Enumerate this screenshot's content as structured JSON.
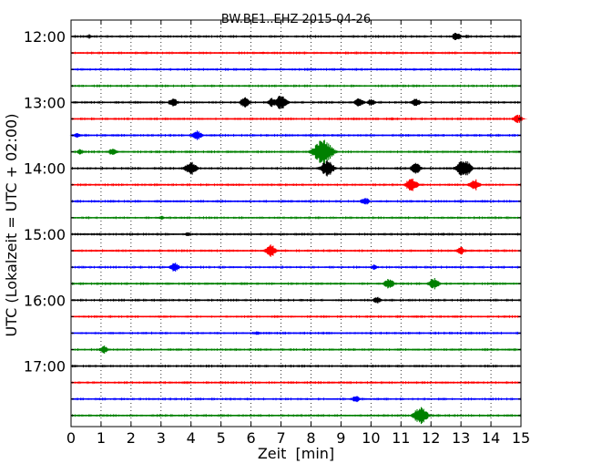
{
  "chart_data": {
    "type": "line",
    "title": "BW.BE1..EHZ 2015-04-26",
    "xlabel": "Zeit  [min]",
    "ylabel": "UTC (Lokalzeit = UTC + 02:00)",
    "xlim": [
      0,
      15
    ],
    "x_ticks": [
      0,
      1,
      2,
      3,
      4,
      5,
      6,
      7,
      8,
      9,
      10,
      11,
      12,
      13,
      14,
      15
    ],
    "x_tick_labels": [
      "0",
      "1",
      "2",
      "3",
      "4",
      "5",
      "6",
      "7",
      "8",
      "9",
      "10",
      "11",
      "12",
      "13",
      "14",
      "15"
    ],
    "y_tick_labels": [
      "12:00",
      "13:00",
      "14:00",
      "15:00",
      "16:00",
      "17:00"
    ],
    "grid": "vertical-dotted",
    "trace_interval_minutes": 15,
    "color_cycle": [
      "#000000",
      "#ff0000",
      "#0000ff",
      "#008000"
    ],
    "traces": [
      {
        "start": "12:00",
        "events": [
          {
            "t": 0.6,
            "amp": 0.25
          },
          {
            "t": 12.85,
            "amp": 0.5
          },
          {
            "t": 13.2,
            "amp": 0.2
          }
        ]
      },
      {
        "start": "12:15",
        "events": [
          {
            "t": 6.4,
            "amp": 0.15
          }
        ]
      },
      {
        "start": "12:30",
        "events": []
      },
      {
        "start": "12:45",
        "events": [
          {
            "t": 11.0,
            "amp": 0.12
          }
        ]
      },
      {
        "start": "13:00",
        "events": [
          {
            "t": 3.4,
            "amp": 0.5
          },
          {
            "t": 5.8,
            "amp": 0.6
          },
          {
            "t": 6.7,
            "amp": 0.5
          },
          {
            "t": 7.0,
            "amp": 0.8
          },
          {
            "t": 9.6,
            "amp": 0.5
          },
          {
            "t": 10.0,
            "amp": 0.4
          },
          {
            "t": 11.5,
            "amp": 0.5
          }
        ]
      },
      {
        "start": "13:15",
        "events": [
          {
            "t": 10.7,
            "amp": 0.2
          },
          {
            "t": 14.9,
            "amp": 0.5
          }
        ]
      },
      {
        "start": "13:30",
        "events": [
          {
            "t": 0.2,
            "amp": 0.3
          },
          {
            "t": 4.2,
            "amp": 0.55
          }
        ]
      },
      {
        "start": "13:45",
        "events": [
          {
            "t": 0.3,
            "amp": 0.3
          },
          {
            "t": 1.4,
            "amp": 0.45
          },
          {
            "t": 8.4,
            "amp": 1.4
          }
        ]
      },
      {
        "start": "14:00",
        "events": [
          {
            "t": 4.0,
            "amp": 0.75
          },
          {
            "t": 8.55,
            "amp": 0.9
          },
          {
            "t": 11.5,
            "amp": 0.6
          },
          {
            "t": 13.1,
            "amp": 1.0
          }
        ]
      },
      {
        "start": "14:15",
        "events": [
          {
            "t": 11.35,
            "amp": 0.75
          },
          {
            "t": 13.45,
            "amp": 0.65
          }
        ]
      },
      {
        "start": "14:30",
        "events": [
          {
            "t": 1.3,
            "amp": 0.15
          },
          {
            "t": 9.8,
            "amp": 0.45
          }
        ]
      },
      {
        "start": "14:45",
        "events": [
          {
            "t": 3.0,
            "amp": 0.25
          }
        ]
      },
      {
        "start": "15:00",
        "events": [
          {
            "t": 3.9,
            "amp": 0.25
          },
          {
            "t": 12.4,
            "amp": 0.2
          }
        ]
      },
      {
        "start": "15:15",
        "events": [
          {
            "t": 6.65,
            "amp": 0.7
          },
          {
            "t": 13.0,
            "amp": 0.45
          }
        ]
      },
      {
        "start": "15:30",
        "events": [
          {
            "t": 3.45,
            "amp": 0.55
          },
          {
            "t": 10.1,
            "amp": 0.3
          }
        ]
      },
      {
        "start": "15:45",
        "events": [
          {
            "t": 10.6,
            "amp": 0.6
          },
          {
            "t": 12.1,
            "amp": 0.65
          }
        ]
      },
      {
        "start": "16:00",
        "events": [
          {
            "t": 7.7,
            "amp": 0.15
          },
          {
            "t": 10.2,
            "amp": 0.4
          }
        ]
      },
      {
        "start": "16:15",
        "events": []
      },
      {
        "start": "16:30",
        "events": [
          {
            "t": 6.2,
            "amp": 0.25
          }
        ]
      },
      {
        "start": "16:45",
        "events": [
          {
            "t": 1.1,
            "amp": 0.45
          }
        ]
      },
      {
        "start": "17:00",
        "events": []
      },
      {
        "start": "17:15",
        "events": []
      },
      {
        "start": "17:30",
        "events": [
          {
            "t": 9.5,
            "amp": 0.4
          }
        ]
      },
      {
        "start": "17:45",
        "events": [
          {
            "t": 11.65,
            "amp": 0.95
          }
        ]
      }
    ]
  }
}
